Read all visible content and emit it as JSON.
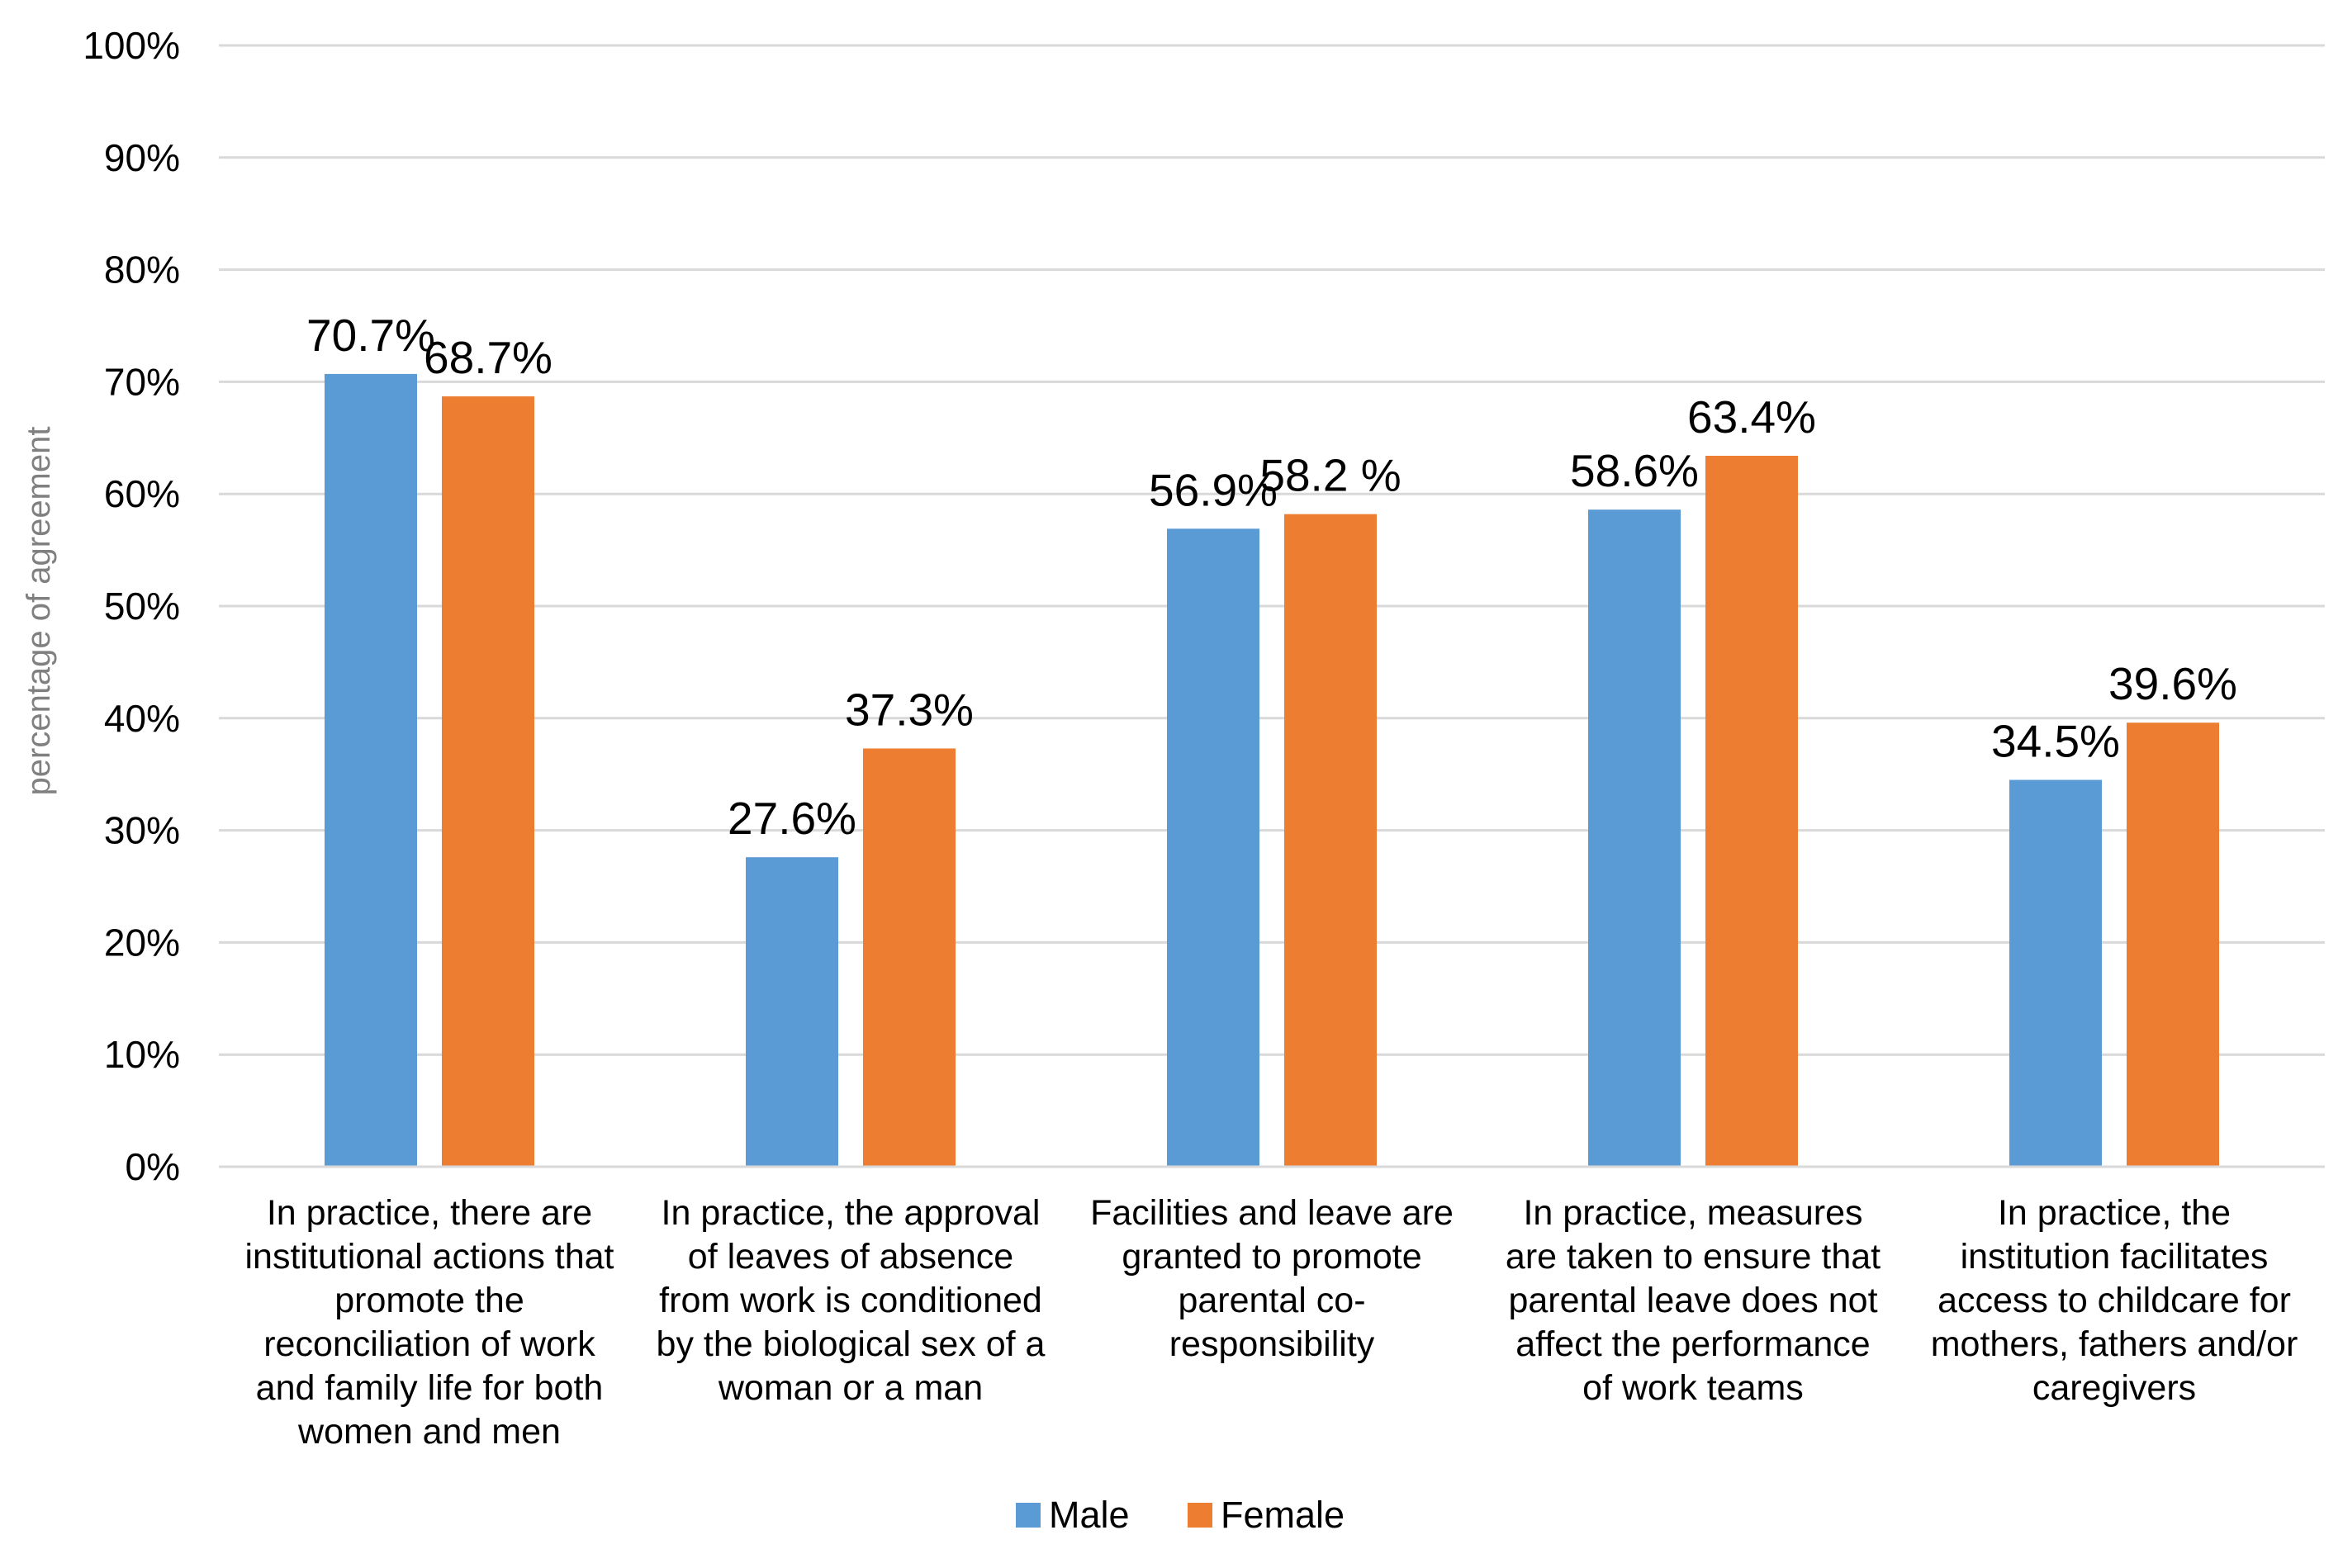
{
  "chart_data": {
    "type": "bar",
    "title": "",
    "xlabel": "",
    "ylabel": "percentage of agreement",
    "ylim": [
      0,
      100
    ],
    "yticks": [
      "0%",
      "10%",
      "20%",
      "30%",
      "40%",
      "50%",
      "60%",
      "70%",
      "80%",
      "90%",
      "100%"
    ],
    "grid": true,
    "legend_position": "bottom-center",
    "categories": [
      "In practice, there are institutional actions that promote the reconciliation of work and family life for both women and men",
      "In practice, the approval of leaves of absence from work is conditioned by the biological sex of a woman or a man",
      "Facilities and leave are granted to promote parental co-responsibility",
      "In practice, measures are taken to ensure that parental leave does not affect the performance of work teams",
      "In practice, the institution facilitates access to childcare for mothers, fathers and/or caregivers"
    ],
    "category_lines": [
      [
        "In practice, there are",
        "institutional actions that",
        "promote the",
        "reconciliation of work",
        "and family life for both",
        "women and men"
      ],
      [
        "In practice, the approval",
        "of leaves of absence",
        "from work is conditioned",
        "by the biological sex of a",
        "woman or a man"
      ],
      [
        "Facilities and leave are",
        "granted to promote",
        "parental co-",
        "responsibility"
      ],
      [
        "In practice, measures",
        "are taken to ensure that",
        "parental leave does not",
        "affect the performance",
        "of work teams"
      ],
      [
        "In practice, the",
        "institution facilitates",
        "access to childcare for",
        "mothers, fathers and/or",
        "caregivers"
      ]
    ],
    "series": [
      {
        "name": "Male",
        "color": "#5B9BD5",
        "values": [
          70.7,
          27.6,
          56.9,
          58.6,
          34.5
        ],
        "labels": [
          "70.7%",
          "27.6%",
          "56.9%",
          "58.6%",
          "34.5%"
        ]
      },
      {
        "name": "Female",
        "color": "#ED7D31",
        "values": [
          68.7,
          37.3,
          58.2,
          63.4,
          39.6
        ],
        "labels": [
          "68.7%",
          "37.3%",
          "58.2 %",
          "63.4%",
          "39.6%"
        ]
      }
    ]
  }
}
